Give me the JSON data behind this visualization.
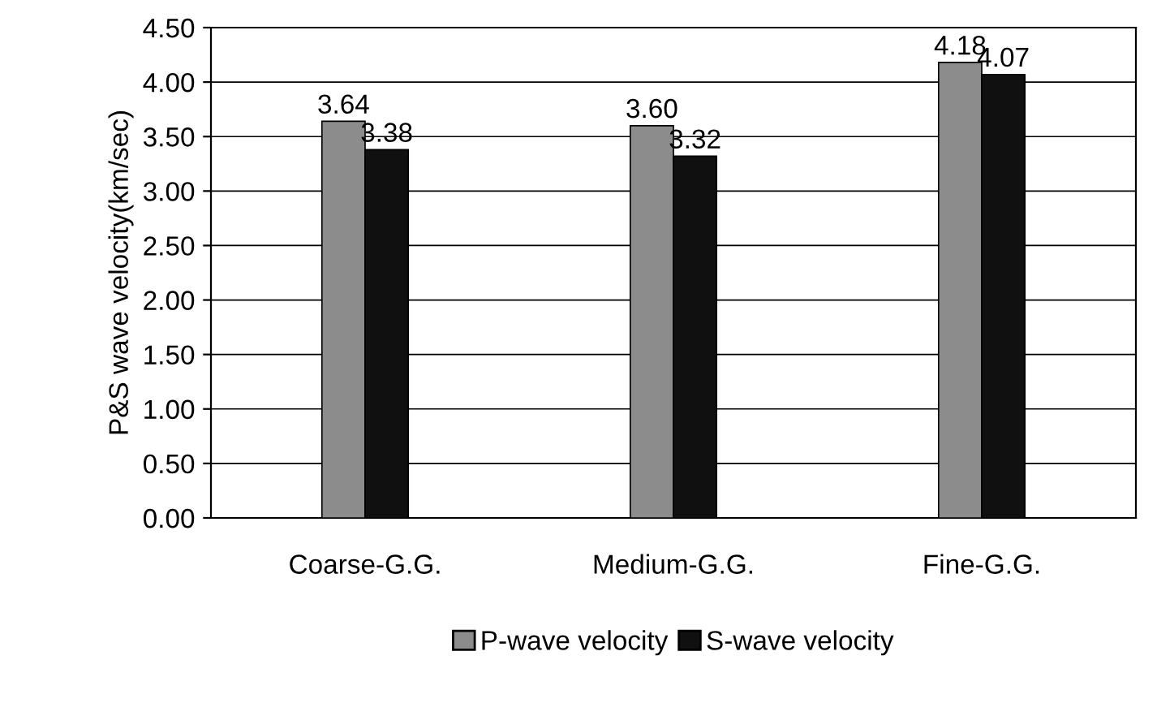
{
  "chart_data": {
    "type": "bar",
    "ylabel": "P&S wave velocity(km/sec)",
    "categories": [
      "Coarse-G.G.",
      "Medium-G.G.",
      "Fine-G.G."
    ],
    "series": [
      {
        "name": "P-wave velocity",
        "color": "#8c8c8c",
        "values": [
          3.64,
          3.6,
          4.18
        ],
        "value_labels": [
          "3.64",
          "3.60",
          "4.18"
        ]
      },
      {
        "name": "S-wave velocity",
        "color": "#101010",
        "values": [
          3.38,
          3.32,
          4.07
        ],
        "value_labels": [
          "3.38",
          "3.32",
          "4.07"
        ]
      }
    ],
    "ylim": [
      0,
      4.5
    ],
    "yticks": [
      {
        "value": 0,
        "label": "0.00"
      },
      {
        "value": 0.5,
        "label": "0.50"
      },
      {
        "value": 1,
        "label": "1.00"
      },
      {
        "value": 1.5,
        "label": "1.50"
      },
      {
        "value": 2,
        "label": "2.00"
      },
      {
        "value": 2.5,
        "label": "2.50"
      },
      {
        "value": 3,
        "label": "3.00"
      },
      {
        "value": 3.5,
        "label": "3.50"
      },
      {
        "value": 4,
        "label": "4.00"
      },
      {
        "value": 4.5,
        "label": "4.50"
      }
    ],
    "grid": "y",
    "legend": "bottom"
  }
}
